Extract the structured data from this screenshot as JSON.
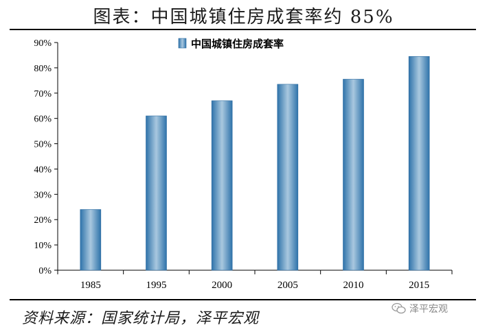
{
  "title": "图表：中国城镇住房成套率约 85%",
  "source": "资料来源：国家统计局，泽平宏观",
  "watermark": "泽平宏观",
  "icons": {
    "watermark": "wechat-icon"
  },
  "colors": {
    "bar_dark": "#2f73aa",
    "bar_light": "#a9c8df",
    "axis": "#000000"
  },
  "chart_data": {
    "type": "bar",
    "categories": [
      "1985",
      "1995",
      "2000",
      "2005",
      "2010",
      "2015"
    ],
    "series": [
      {
        "name": "中国城镇住房成套率",
        "values": [
          24,
          61,
          67,
          73.5,
          75.5,
          84.5
        ]
      }
    ],
    "ylim": [
      0,
      90
    ],
    "yticks": [
      0,
      10,
      20,
      30,
      40,
      50,
      60,
      70,
      80,
      90
    ],
    "ytick_format": "percent",
    "legend": "top-center",
    "grid": false
  }
}
